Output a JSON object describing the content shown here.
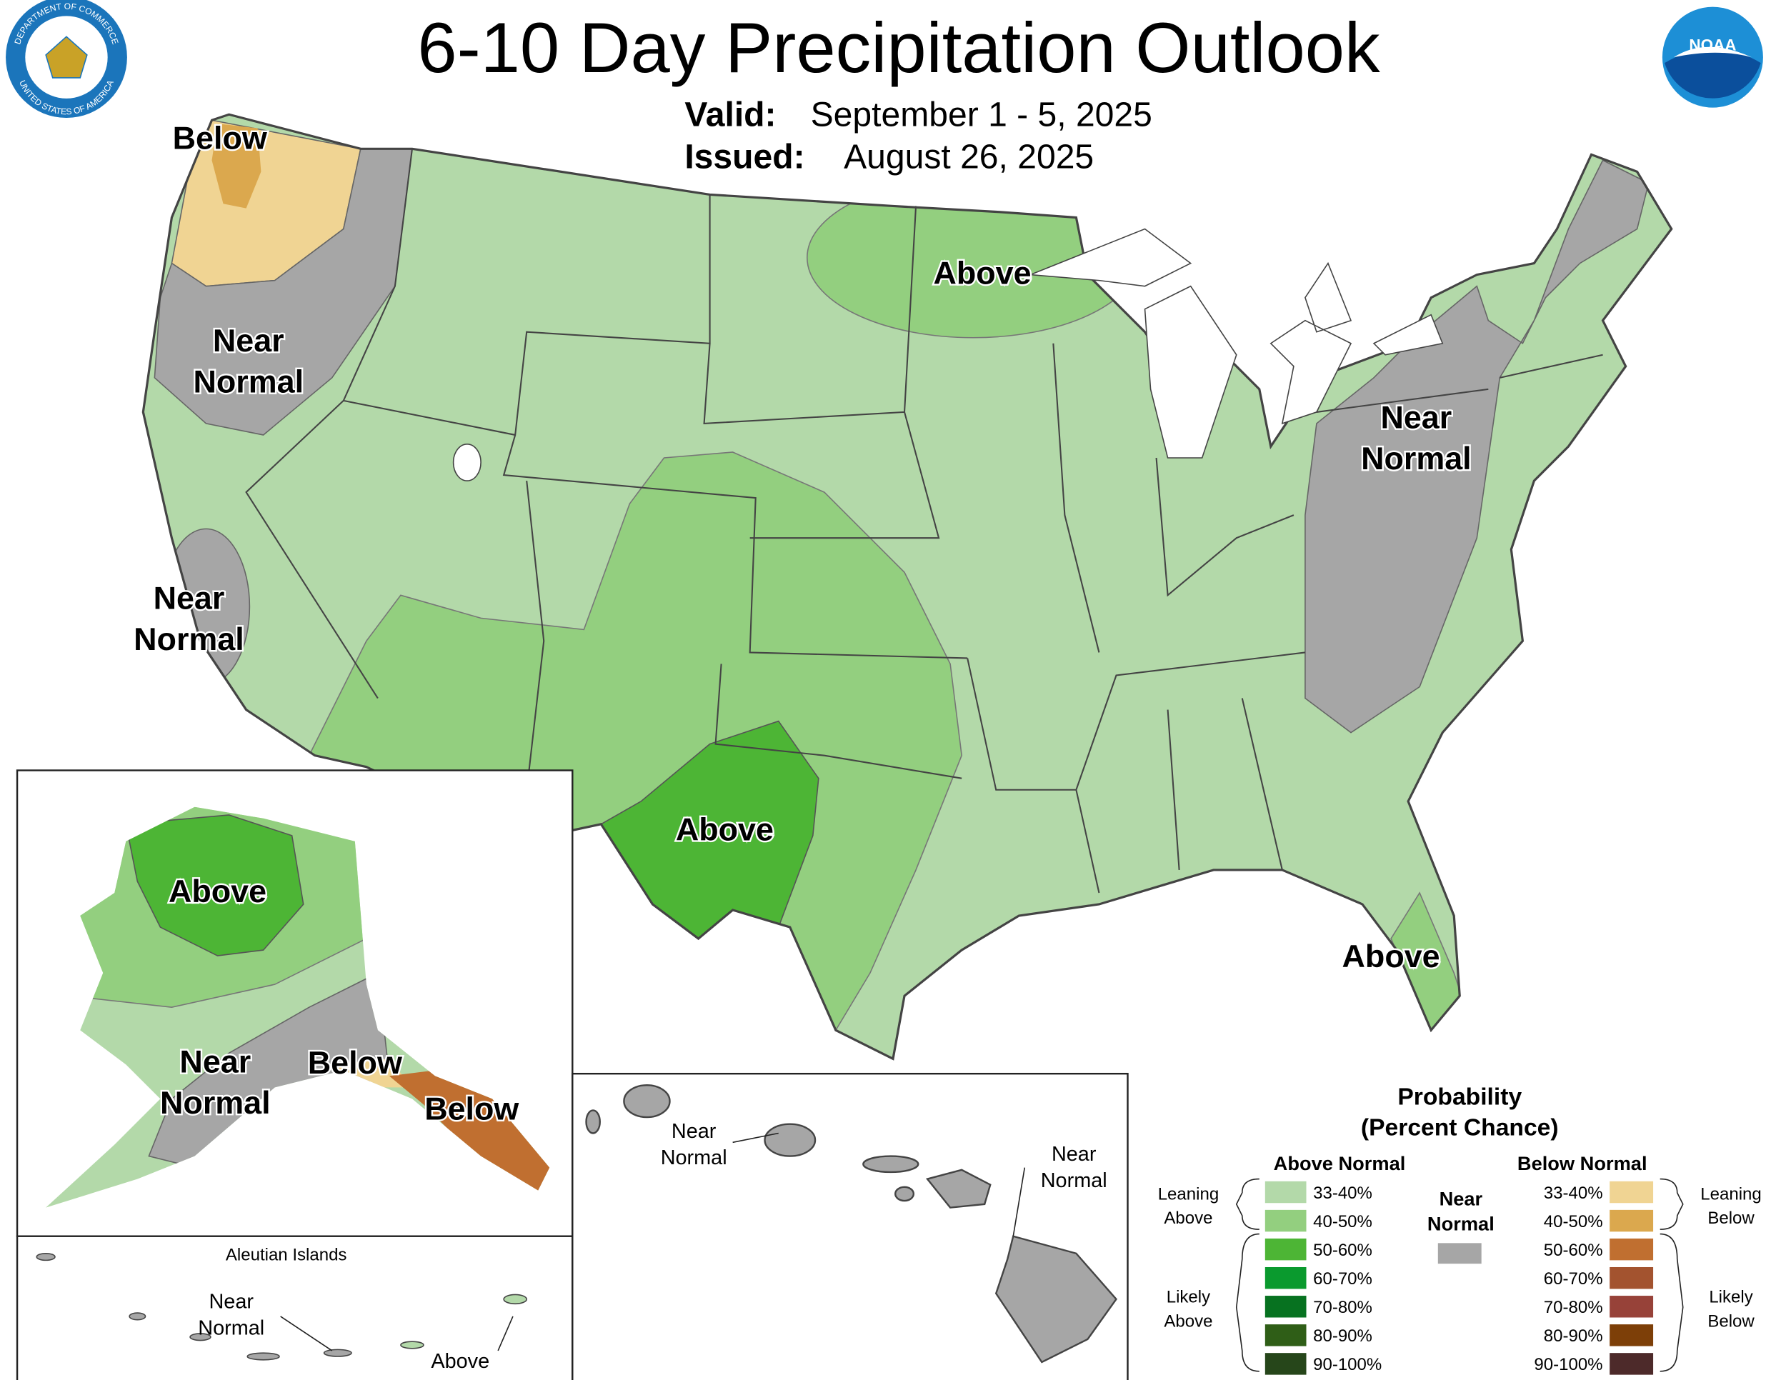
{
  "header": {
    "title": "6-10 Day Precipitation Outlook",
    "valid_label": "Valid:",
    "valid": "September 1 - 5, 2025",
    "issued_label": "Issued:",
    "issued": "August 26, 2025"
  },
  "logos": {
    "commerce_top": "DEPARTMENT OF COMMERCE",
    "commerce_bottom": "UNITED STATES OF AMERICA",
    "noaa": "NOAA"
  },
  "map_labels": [
    [
      "Below"
    ],
    [
      "Near",
      "Normal"
    ],
    [
      "Near",
      "Normal"
    ],
    [
      "Above"
    ],
    [
      "Near",
      "Normal"
    ],
    [
      "Above"
    ],
    [
      "Above"
    ],
    [
      "Above"
    ],
    [
      "Near",
      "Normal"
    ],
    [
      "Below"
    ],
    [
      "Below"
    ],
    [
      "Near",
      "Normal"
    ],
    [
      "Near",
      "Normal"
    ],
    [
      "Near",
      "Normal"
    ],
    [
      "Above"
    ]
  ],
  "aleutian_title": "Aleutian Islands",
  "legend": {
    "title": [
      "Probability",
      "(Percent Chance)"
    ],
    "above_header": "Above Normal",
    "below_header": "Below Normal",
    "near_normal": [
      "Near",
      "Normal"
    ],
    "near_normal_color": "#a6a6a6",
    "leaning_above": [
      "Leaning",
      "Above"
    ],
    "likely_above": [
      "Likely",
      "Above"
    ],
    "leaning_below": [
      "Leaning",
      "Below"
    ],
    "likely_below": [
      "Likely",
      "Below"
    ],
    "above_bins": [
      {
        "label": "33-40%",
        "color": "#b3d9a9"
      },
      {
        "label": "40-50%",
        "color": "#93cf7f"
      },
      {
        "label": "50-60%",
        "color": "#4db535"
      },
      {
        "label": "60-70%",
        "color": "#0a9a2e"
      },
      {
        "label": "70-80%",
        "color": "#077220"
      },
      {
        "label": "80-90%",
        "color": "#2f5e17"
      },
      {
        "label": "90-100%",
        "color": "#26461a"
      }
    ],
    "below_bins": [
      {
        "label": "33-40%",
        "color": "#f0d493"
      },
      {
        "label": "40-50%",
        "color": "#dba84e"
      },
      {
        "label": "50-60%",
        "color": "#c06f30"
      },
      {
        "label": "60-70%",
        "color": "#a3532f"
      },
      {
        "label": "70-80%",
        "color": "#974239"
      },
      {
        "label": "80-90%",
        "color": "#7d3f08"
      },
      {
        "label": "90-100%",
        "color": "#4d2a2a"
      }
    ]
  }
}
